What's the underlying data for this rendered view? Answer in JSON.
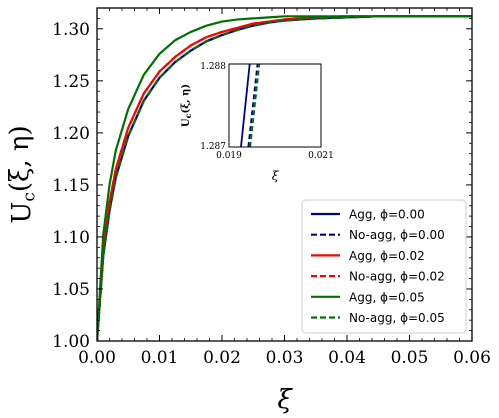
{
  "chart_data": {
    "type": "line",
    "ylabel": "U_c(ξ, η)",
    "xlabel": "ξ",
    "xlim": [
      0.0,
      0.06
    ],
    "ylim": [
      1.0,
      1.32
    ],
    "xticks": [
      "0.00",
      "0.01",
      "0.02",
      "0.03",
      "0.04",
      "0.05",
      "0.06"
    ],
    "xtick_values": [
      0,
      0.01,
      0.02,
      0.03,
      0.04,
      0.05,
      0.06
    ],
    "yticks": [
      "1.00",
      "1.05",
      "1.10",
      "1.15",
      "1.20",
      "1.25",
      "1.30"
    ],
    "ytick_values": [
      1.0,
      1.05,
      1.1,
      1.15,
      1.2,
      1.25,
      1.3
    ],
    "legend_position": "lower-right",
    "series": [
      {
        "name": "Agg, ϕ=0.00",
        "color": "#00008b",
        "dash": false,
        "x": [
          0,
          0.001,
          0.002,
          0.003,
          0.005,
          0.0075,
          0.01,
          0.0125,
          0.015,
          0.0175,
          0.02,
          0.0225,
          0.025,
          0.0275,
          0.03,
          0.035,
          0.04,
          0.045,
          0.05,
          0.06
        ],
        "y": [
          1.0,
          1.082,
          1.125,
          1.157,
          1.197,
          1.231,
          1.253,
          1.268,
          1.279,
          1.288,
          1.294,
          1.299,
          1.303,
          1.306,
          1.308,
          1.31,
          1.311,
          1.312,
          1.312,
          1.312
        ]
      },
      {
        "name": "No-agg, ϕ=0.00",
        "color": "#00008b",
        "dash": true,
        "x": [
          0,
          0.001,
          0.002,
          0.003,
          0.005,
          0.0075,
          0.01,
          0.0125,
          0.015,
          0.0175,
          0.02,
          0.0225,
          0.025,
          0.0275,
          0.03,
          0.035,
          0.04,
          0.045,
          0.05,
          0.06
        ],
        "y": [
          1.0,
          1.082,
          1.125,
          1.157,
          1.197,
          1.231,
          1.253,
          1.268,
          1.279,
          1.288,
          1.294,
          1.299,
          1.303,
          1.306,
          1.308,
          1.31,
          1.311,
          1.312,
          1.312,
          1.312
        ]
      },
      {
        "name": "Agg, ϕ=0.02",
        "color": "#ff0000",
        "dash": false,
        "x": [
          0,
          0.001,
          0.002,
          0.003,
          0.005,
          0.0075,
          0.01,
          0.0125,
          0.015,
          0.0175,
          0.02,
          0.0225,
          0.025,
          0.0275,
          0.03,
          0.035,
          0.04,
          0.045,
          0.05,
          0.06
        ],
        "y": [
          1.0,
          1.088,
          1.133,
          1.165,
          1.205,
          1.238,
          1.259,
          1.273,
          1.284,
          1.292,
          1.297,
          1.301,
          1.305,
          1.307,
          1.309,
          1.311,
          1.312,
          1.312,
          1.312,
          1.312
        ]
      },
      {
        "name": "No-agg, ϕ=0.02",
        "color": "#ff0000",
        "dash": true,
        "x": [
          0,
          0.001,
          0.002,
          0.003,
          0.005,
          0.0075,
          0.01,
          0.0125,
          0.015,
          0.0175,
          0.02,
          0.0225,
          0.025,
          0.0275,
          0.03,
          0.035,
          0.04,
          0.045,
          0.05,
          0.06
        ],
        "y": [
          1.0,
          1.088,
          1.133,
          1.165,
          1.205,
          1.238,
          1.259,
          1.273,
          1.284,
          1.292,
          1.297,
          1.301,
          1.305,
          1.307,
          1.309,
          1.311,
          1.312,
          1.312,
          1.312,
          1.312
        ]
      },
      {
        "name": "Agg, ϕ=0.05",
        "color": "#007000",
        "dash": false,
        "x": [
          0,
          0.001,
          0.002,
          0.003,
          0.005,
          0.0075,
          0.01,
          0.0125,
          0.015,
          0.0175,
          0.02,
          0.0225,
          0.025,
          0.0275,
          0.03,
          0.035,
          0.04,
          0.045,
          0.05,
          0.06
        ],
        "y": [
          1.0,
          1.102,
          1.15,
          1.183,
          1.223,
          1.256,
          1.276,
          1.289,
          1.297,
          1.303,
          1.307,
          1.309,
          1.31,
          1.311,
          1.312,
          1.312,
          1.312,
          1.312,
          1.312,
          1.312
        ]
      },
      {
        "name": "No-agg, ϕ=0.05",
        "color": "#007000",
        "dash": true,
        "x": [
          0,
          0.001,
          0.002,
          0.003,
          0.005,
          0.0075,
          0.01,
          0.0125,
          0.015,
          0.0175,
          0.02,
          0.0225,
          0.025,
          0.0275,
          0.03,
          0.035,
          0.04,
          0.045,
          0.05,
          0.06
        ],
        "y": [
          1.0,
          1.082,
          1.125,
          1.157,
          1.197,
          1.231,
          1.253,
          1.268,
          1.279,
          1.288,
          1.294,
          1.299,
          1.303,
          1.306,
          1.308,
          1.31,
          1.311,
          1.312,
          1.312,
          1.312
        ]
      }
    ],
    "inset": {
      "xlabel": "ξ",
      "ylabel": "U_c(ξ, η)",
      "xlim": [
        0.019,
        0.021
      ],
      "ylim": [
        1.287,
        1.288
      ],
      "xticks": [
        "0.019",
        "0.021"
      ],
      "yticks": [
        "1.287",
        "1.288"
      ],
      "series": [
        {
          "name": "Agg, ϕ=0.00",
          "color": "#00008b",
          "dash": false,
          "x": [
            0.01926,
            0.01945
          ],
          "y": [
            1.287,
            1.288
          ]
        },
        {
          "name": "No-agg, ϕ=0.00",
          "color": "#00008b",
          "dash": true,
          "x": [
            0.01942,
            0.01962
          ],
          "y": [
            1.287,
            1.288
          ]
        },
        {
          "name": "No-agg, ϕ=0.05",
          "color": "#007000",
          "dash": true,
          "x": [
            0.01946,
            0.01966
          ],
          "y": [
            1.287,
            1.288
          ]
        }
      ]
    }
  }
}
